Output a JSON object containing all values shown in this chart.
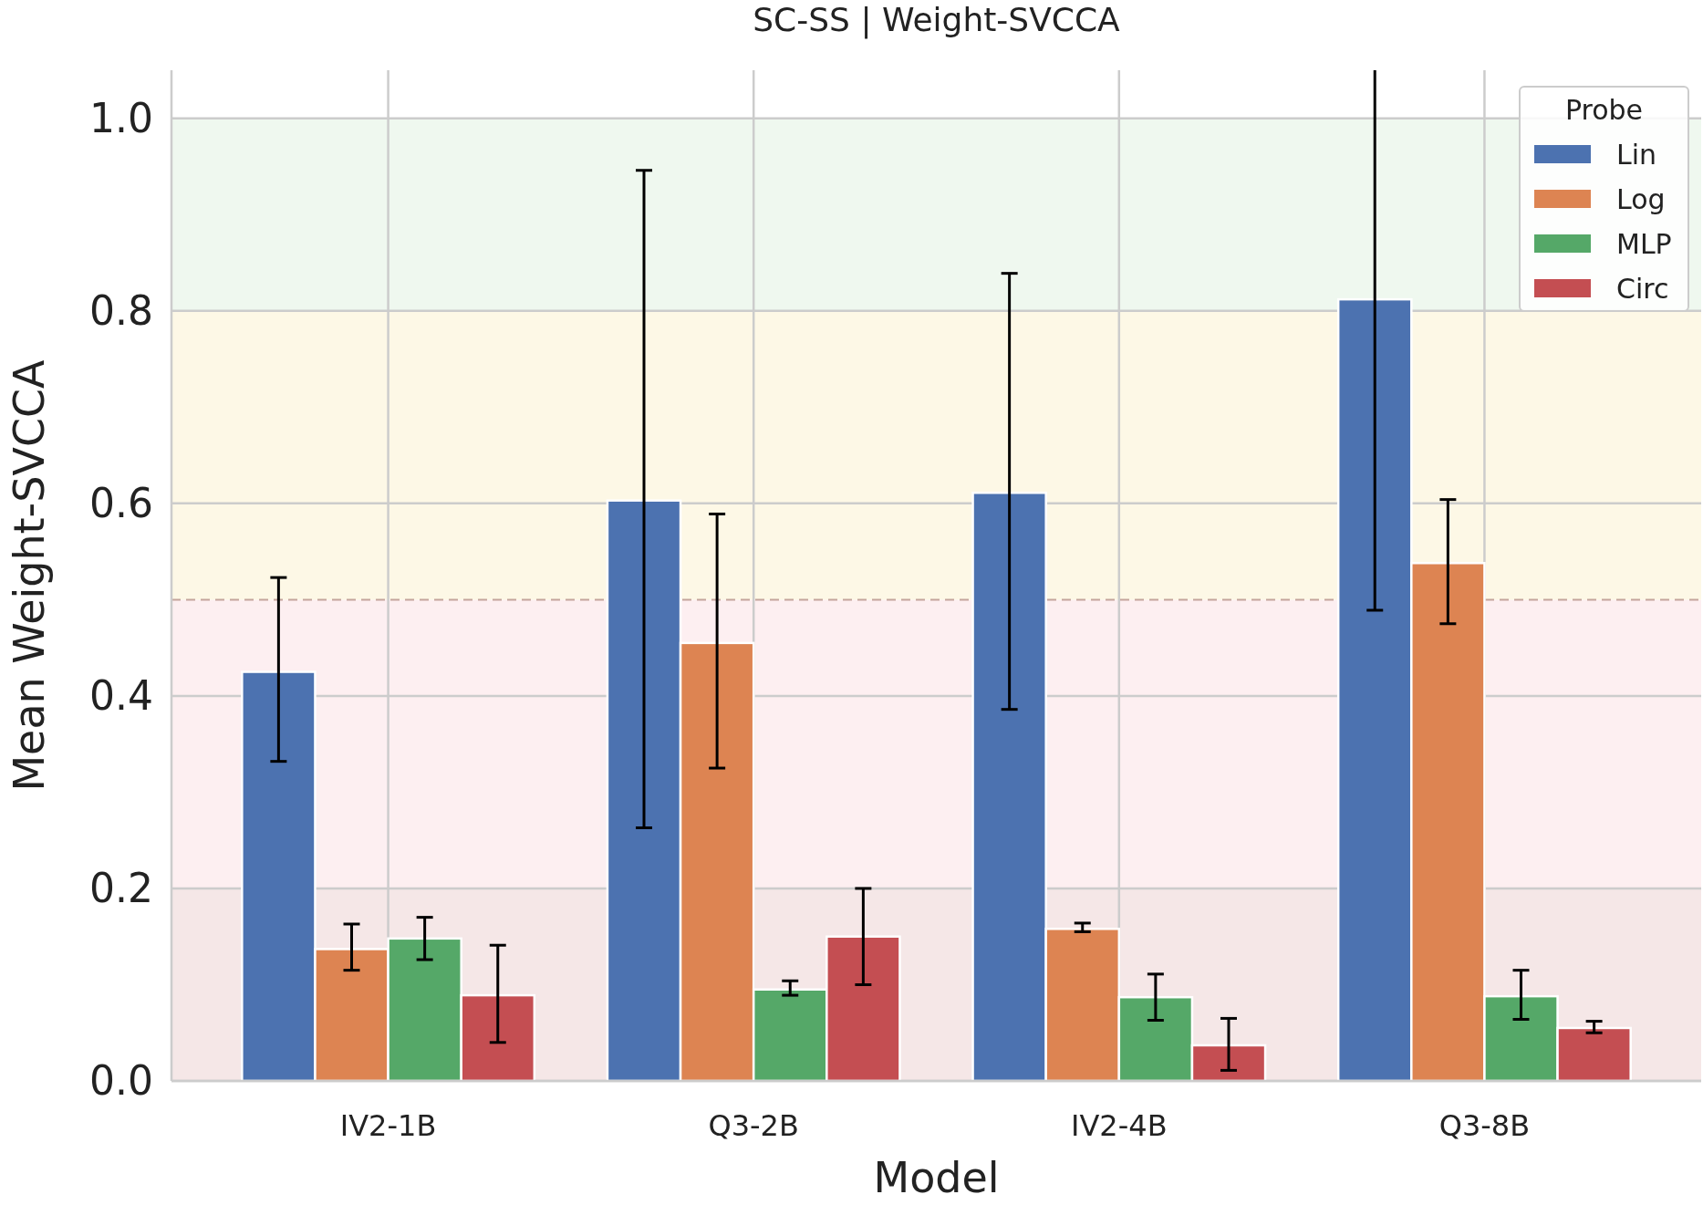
{
  "chart_data": {
    "type": "bar",
    "title": "SC-SS | Weight-SVCCA",
    "xlabel": "Model",
    "ylabel": "Mean Weight-SVCCA",
    "legend_title": "Probe",
    "categories": [
      "IV2-1B",
      "Q3-2B",
      "IV2-4B",
      "Q3-8B"
    ],
    "series": [
      {
        "name": "Lin",
        "color": "#4c72b0",
        "values": [
          0.425,
          0.603,
          0.611,
          0.812
        ],
        "errors": [
          [
            0.332,
            0.523
          ],
          [
            0.263,
            0.946
          ],
          [
            0.386,
            0.839
          ],
          [
            0.489,
            1.05
          ]
        ]
      },
      {
        "name": "Log",
        "color": "#dd8452",
        "values": [
          0.137,
          0.455,
          0.158,
          0.538
        ],
        "errors": [
          [
            0.115,
            0.163
          ],
          [
            0.325,
            0.589
          ],
          [
            0.155,
            0.164
          ],
          [
            0.475,
            0.604
          ]
        ]
      },
      {
        "name": "MLP",
        "color": "#55a868",
        "values": [
          0.148,
          0.095,
          0.087,
          0.088
        ],
        "errors": [
          [
            0.126,
            0.17
          ],
          [
            0.089,
            0.104
          ],
          [
            0.063,
            0.111
          ],
          [
            0.064,
            0.115
          ]
        ]
      },
      {
        "name": "Circ",
        "color": "#c44e52",
        "values": [
          0.089,
          0.15,
          0.037,
          0.055
        ],
        "errors": [
          [
            0.04,
            0.141
          ],
          [
            0.1,
            0.2
          ],
          [
            0.011,
            0.065
          ],
          [
            0.05,
            0.062
          ]
        ]
      }
    ],
    "ylim": [
      0,
      1.05
    ],
    "yticks": [
      {
        "value": 0,
        "label": "0.0"
      },
      {
        "value": 0.2,
        "label": "0.2"
      },
      {
        "value": 0.4,
        "label": "0.4"
      },
      {
        "value": 0.6,
        "label": "0.6"
      },
      {
        "value": 0.8,
        "label": "0.8"
      },
      {
        "value": 1,
        "label": "1.0"
      }
    ],
    "grid": true,
    "legend": "top right",
    "bands": [
      {
        "axis": "y",
        "from": 0,
        "to": 0.2,
        "color": "#f5e7e7"
      },
      {
        "axis": "y",
        "from": 0.2,
        "to": 0.5,
        "color": "#fdeff1"
      },
      {
        "axis": "y",
        "from": 0.5,
        "to": 0.8,
        "color": "#fdf8e6"
      },
      {
        "axis": "y",
        "from": 0.8,
        "to": 1.0,
        "color": "#eff8ef"
      }
    ],
    "ref_lines": [
      {
        "axis": "y",
        "value": 0.5,
        "color": "#c4a49c",
        "line_style": "dashed"
      }
    ]
  }
}
